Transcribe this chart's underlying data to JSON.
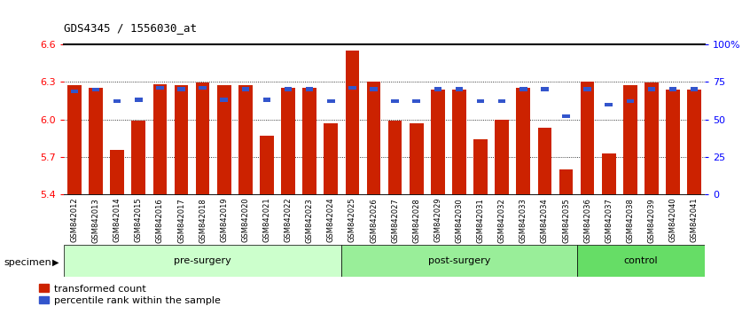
{
  "title": "GDS4345 / 1556030_at",
  "categories": [
    "GSM842012",
    "GSM842013",
    "GSM842014",
    "GSM842015",
    "GSM842016",
    "GSM842017",
    "GSM842018",
    "GSM842019",
    "GSM842020",
    "GSM842021",
    "GSM842022",
    "GSM842023",
    "GSM842024",
    "GSM842025",
    "GSM842026",
    "GSM842027",
    "GSM842028",
    "GSM842029",
    "GSM842030",
    "GSM842031",
    "GSM842032",
    "GSM842033",
    "GSM842034",
    "GSM842035",
    "GSM842036",
    "GSM842037",
    "GSM842038",
    "GSM842039",
    "GSM842040",
    "GSM842041"
  ],
  "red_values": [
    6.27,
    6.25,
    5.76,
    5.99,
    6.28,
    6.27,
    6.29,
    6.27,
    6.27,
    5.87,
    6.25,
    6.25,
    5.97,
    6.55,
    6.3,
    5.99,
    5.97,
    6.24,
    6.24,
    5.84,
    6.0,
    6.25,
    5.93,
    5.6,
    6.3,
    5.73,
    6.27,
    6.29,
    6.24,
    6.24
  ],
  "blue_values": [
    6.21,
    6.22,
    6.13,
    6.14,
    6.235,
    6.225,
    6.235,
    6.14,
    6.225,
    6.14,
    6.225,
    6.225,
    6.13,
    6.235,
    6.225,
    6.13,
    6.13,
    6.225,
    6.225,
    6.13,
    6.13,
    6.225,
    6.225,
    6.01,
    6.225,
    6.1,
    6.13,
    6.225,
    6.225,
    6.225
  ],
  "ymin": 5.4,
  "ymax": 6.6,
  "bar_color": "#cc2200",
  "blue_color": "#3355cc",
  "yticks": [
    5.4,
    5.7,
    6.0,
    6.3,
    6.6
  ],
  "grid_lines": [
    5.7,
    6.0,
    6.3
  ],
  "right_ticks": [
    0,
    25,
    50,
    75,
    100
  ],
  "right_tick_labels": [
    "0",
    "25",
    "50",
    "75",
    "100%"
  ],
  "groups": [
    {
      "label": "pre-surgery",
      "start": 0,
      "end": 13,
      "color": "#ccffcc"
    },
    {
      "label": "post-surgery",
      "start": 13,
      "end": 24,
      "color": "#99ee99"
    },
    {
      "label": "control",
      "start": 24,
      "end": 30,
      "color": "#66dd66"
    }
  ]
}
